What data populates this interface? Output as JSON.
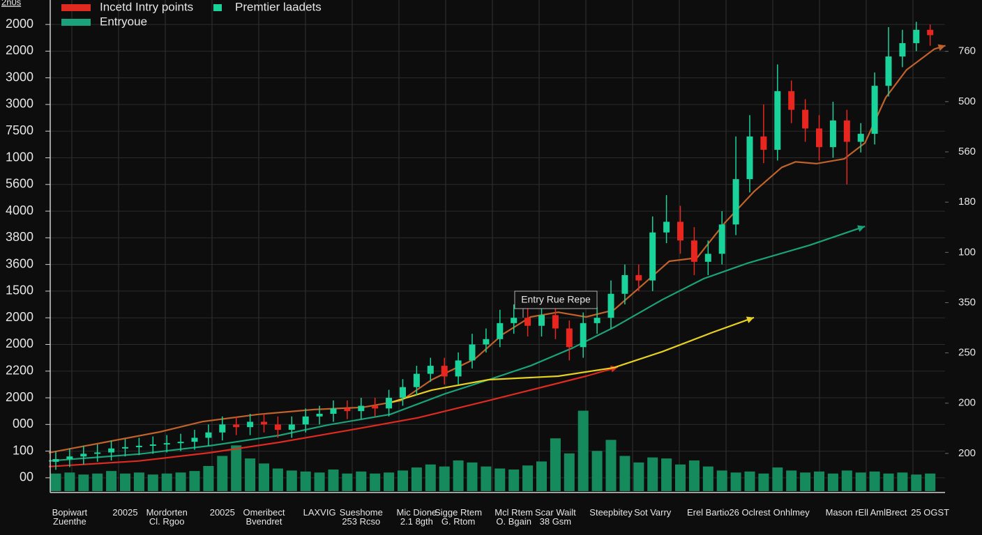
{
  "chart_data": {
    "type": "candlestick",
    "ylabel": "2n0s",
    "annotation": "Entry Rue Repe",
    "legend": "upper left",
    "grid": true,
    "categories": [
      null,
      "Bopiwart\nZuenthe",
      null,
      null,
      null,
      "20025",
      null,
      null,
      "Mordorten\nCl. Rgoo",
      null,
      null,
      null,
      "20025",
      null,
      null,
      "Omeribect\nBvendret",
      null,
      null,
      null,
      "LAXVIG",
      null,
      null,
      "Sueshome\n253 Rcso",
      null,
      null,
      null,
      "Mic Dione\n2.1 8gth",
      null,
      null,
      "Sigge Rtem\nG. Rtom",
      null,
      null,
      null,
      "Mcl Rtem\nO. Bgain",
      null,
      null,
      "Scar Wailt\n38 Gsm",
      null,
      null,
      null,
      "Steepbitey",
      null,
      null,
      "Sot Varry",
      null,
      null,
      null,
      "Erel Bartio",
      null,
      null,
      "26 Oclrest",
      null,
      null,
      "Onhlmey",
      null,
      null,
      null,
      "Mason rEll",
      null,
      null,
      "AmlBrect",
      null,
      null,
      "25 OGST"
    ],
    "ylim": [
      -0.5,
      17.5
    ],
    "yticks": [
      {
        "value": 0,
        "label": "00"
      },
      {
        "value": 1,
        "label": "100"
      },
      {
        "value": 2,
        "label": "000"
      },
      {
        "value": 3,
        "label": "2000"
      },
      {
        "value": 4,
        "label": "2200"
      },
      {
        "value": 5,
        "label": "2000"
      },
      {
        "value": 6,
        "label": "2000"
      },
      {
        "value": 7,
        "label": "1500"
      },
      {
        "value": 8,
        "label": "3600"
      },
      {
        "value": 9,
        "label": "3800"
      },
      {
        "value": 10,
        "label": "4000"
      },
      {
        "value": 11,
        "label": "5600"
      },
      {
        "value": 12,
        "label": "1000"
      },
      {
        "value": 13,
        "label": "7500"
      },
      {
        "value": 14,
        "label": "3000"
      },
      {
        "value": 15,
        "label": "3000"
      },
      {
        "value": 16,
        "label": "2000"
      },
      {
        "value": 17,
        "label": "2000"
      }
    ],
    "y2lim": [
      0.25,
      9.8
    ],
    "y2ticks": [
      {
        "value": 1,
        "label": "200"
      },
      {
        "value": 2,
        "label": "200"
      },
      {
        "value": 3,
        "label": "250"
      },
      {
        "value": 4,
        "label": "350"
      },
      {
        "value": 5,
        "label": "100"
      },
      {
        "value": 6,
        "label": "180"
      },
      {
        "value": 7,
        "label": "560"
      },
      {
        "value": 8,
        "label": "500"
      },
      {
        "value": 9,
        "label": "760"
      }
    ],
    "series": [
      {
        "name": "Incetd Intry points",
        "type": "line",
        "color": "#e02a20",
        "arrow": true,
        "x": [
          -0.5,
          6.0,
          11.1,
          16.1,
          21.1,
          26.1,
          31.2,
          35.2,
          38.2,
          40.5
        ],
        "values": [
          0.42,
          0.63,
          0.94,
          1.33,
          1.78,
          2.25,
          2.9,
          3.42,
          3.81,
          4.15
        ]
      },
      {
        "name": "Premtier laadets",
        "type": "candlestick",
        "color": "#19d39a",
        "down_color": "#e8261f",
        "open": [
          0.6,
          0.7,
          0.8,
          0.9,
          0.95,
          1.1,
          1.15,
          1.2,
          1.25,
          1.3,
          1.35,
          1.5,
          1.7,
          2.0,
          1.9,
          2.1,
          2.0,
          1.8,
          2.0,
          2.3,
          2.4,
          2.6,
          2.5,
          2.7,
          2.6,
          3.0,
          3.4,
          3.9,
          4.2,
          3.8,
          4.4,
          5.0,
          5.2,
          5.8,
          6.0,
          5.7,
          6.1,
          5.6,
          4.9,
          5.8,
          6.0,
          6.9,
          7.6,
          7.4,
          9.2,
          9.6,
          8.9,
          8.1,
          8.4,
          9.5,
          11.2,
          12.8,
          12.3,
          14.5,
          13.8,
          13.1,
          12.4,
          13.4,
          12.6,
          12.9,
          14.7,
          15.8,
          16.3,
          16.8
        ],
        "high": [
          1.0,
          1.1,
          1.2,
          1.25,
          1.4,
          1.45,
          1.5,
          1.55,
          1.6,
          1.65,
          1.8,
          2.0,
          2.3,
          2.3,
          2.4,
          2.4,
          2.3,
          2.3,
          2.6,
          2.7,
          2.9,
          2.9,
          3.0,
          3.0,
          3.3,
          3.7,
          4.2,
          4.5,
          4.5,
          4.7,
          5.4,
          5.6,
          6.3,
          6.5,
          6.4,
          6.5,
          6.5,
          5.9,
          6.2,
          6.4,
          7.4,
          8.0,
          8.0,
          9.8,
          10.6,
          10.2,
          9.4,
          8.9,
          10.0,
          12.8,
          13.6,
          14.0,
          15.5,
          14.9,
          14.2,
          13.6,
          14.1,
          13.8,
          13.3,
          15.2,
          16.9,
          16.8,
          17.1,
          17.0
        ],
        "low": [
          0.3,
          0.4,
          0.5,
          0.6,
          0.65,
          0.8,
          0.85,
          0.9,
          0.95,
          1.0,
          1.05,
          1.2,
          1.4,
          1.6,
          1.6,
          1.7,
          1.5,
          1.5,
          1.7,
          2.0,
          2.1,
          2.2,
          2.2,
          2.3,
          2.3,
          2.7,
          3.1,
          3.6,
          3.5,
          3.5,
          4.1,
          4.7,
          4.9,
          5.4,
          5.3,
          5.3,
          5.2,
          4.4,
          4.5,
          5.4,
          5.6,
          6.5,
          7.0,
          7.0,
          8.8,
          8.4,
          7.6,
          7.6,
          8.0,
          9.1,
          10.7,
          11.8,
          11.9,
          13.3,
          12.6,
          11.9,
          12.0,
          11.0,
          12.2,
          12.5,
          14.3,
          15.4,
          16.0,
          16.2
        ],
        "close": [
          0.7,
          0.8,
          0.9,
          0.95,
          1.1,
          1.15,
          1.2,
          1.25,
          1.3,
          1.35,
          1.5,
          1.7,
          2.0,
          1.9,
          2.1,
          2.0,
          1.8,
          2.0,
          2.3,
          2.4,
          2.6,
          2.5,
          2.7,
          2.6,
          3.0,
          3.4,
          3.9,
          4.2,
          3.8,
          4.4,
          5.0,
          5.2,
          5.8,
          6.0,
          5.7,
          6.1,
          5.6,
          4.9,
          5.8,
          6.0,
          6.9,
          7.6,
          7.4,
          9.2,
          9.6,
          8.9,
          8.1,
          8.4,
          9.5,
          11.2,
          12.8,
          12.3,
          14.5,
          13.8,
          13.1,
          12.4,
          13.4,
          12.6,
          12.9,
          14.7,
          15.8,
          16.3,
          16.8,
          16.6
        ]
      },
      {
        "name": "Entryoue",
        "type": "line",
        "color": "#1aa37a",
        "arrow": true,
        "x": [
          -0.5,
          6.0,
          11.1,
          16.1,
          19.6,
          24.1,
          28.1,
          31.2,
          34.2,
          37.2,
          40.2,
          43.7,
          46.7,
          49.8,
          54.3,
          58.3
        ],
        "values": [
          0.63,
          0.89,
          1.2,
          1.59,
          1.98,
          2.38,
          3.16,
          3.68,
          4.2,
          4.86,
          5.64,
          6.68,
          7.47,
          8.04,
          8.72,
          9.43
        ]
      },
      {
        "type": "line",
        "color": "#c0622a",
        "arrow": true,
        "x": [
          -0.5,
          3.5,
          7.5,
          10.6,
          14.6,
          18.6,
          22.1,
          24.9,
          27.1,
          30.2,
          32.2,
          34.2,
          36.2,
          38.2,
          40.2,
          42.2,
          44.2,
          46.2,
          48.2,
          50.3,
          52.3,
          53.3,
          54.8,
          56.8,
          58.3,
          59.8,
          61.3,
          63.3,
          64.1
        ],
        "values": [
          0.94,
          1.33,
          1.72,
          2.11,
          2.38,
          2.56,
          2.64,
          2.9,
          3.68,
          4.46,
          5.38,
          6.03,
          6.21,
          6.03,
          6.29,
          7.2,
          8.12,
          8.25,
          9.56,
          10.73,
          11.64,
          11.85,
          11.78,
          11.96,
          12.56,
          14.26,
          15.3,
          16.08,
          16.21
        ]
      },
      {
        "type": "line",
        "color": "#e6d020",
        "arrow": true,
        "x": [
          24.1,
          27.1,
          31.2,
          36.2,
          40.2,
          43.7,
          47.2,
          50.3
        ],
        "values": [
          2.82,
          3.29,
          3.68,
          3.81,
          4.13,
          4.73,
          5.43,
          6.01
        ]
      },
      {
        "type": "bar",
        "axis": "y2",
        "color": "#158a5c",
        "values": [
          0.6,
          0.62,
          0.58,
          0.6,
          0.65,
          0.6,
          0.62,
          0.58,
          0.6,
          0.62,
          0.65,
          0.75,
          0.95,
          1.16,
          0.9,
          0.8,
          0.7,
          0.66,
          0.64,
          0.62,
          0.68,
          0.6,
          0.64,
          0.6,
          0.62,
          0.66,
          0.72,
          0.78,
          0.74,
          0.86,
          0.82,
          0.74,
          0.7,
          0.68,
          0.76,
          0.84,
          1.3,
          1.0,
          1.85,
          1.05,
          1.27,
          0.95,
          0.82,
          0.92,
          0.9,
          0.78,
          0.86,
          0.74,
          0.66,
          0.62,
          0.64,
          0.6,
          0.72,
          0.66,
          0.62,
          0.64,
          0.6,
          0.66,
          0.62,
          0.64,
          0.6,
          0.62,
          0.58,
          0.6
        ]
      }
    ]
  }
}
